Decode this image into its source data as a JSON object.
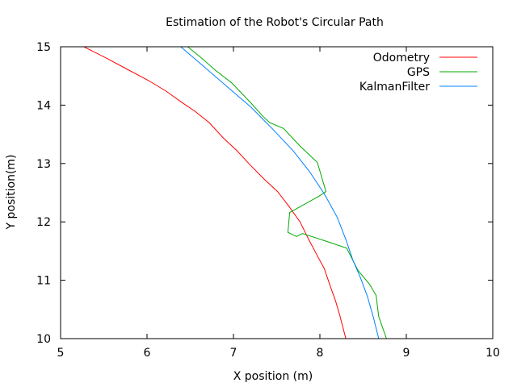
{
  "chart_data": {
    "type": "line",
    "title": "Estimation of the Robot's Circular Path",
    "xlabel": "X position (m)",
    "ylabel": "Y position(m)",
    "xlim": [
      5,
      10
    ],
    "ylim": [
      10,
      15
    ],
    "x_ticks": [
      "5",
      "6",
      "7",
      "8",
      "9",
      "10"
    ],
    "y_ticks": [
      "10",
      "11",
      "12",
      "13",
      "14",
      "15"
    ],
    "grid": false,
    "legend_position": "top-right",
    "series": [
      {
        "name": "Odometry",
        "color": "#ff0000",
        "points": [
          [
            5.27,
            15.0
          ],
          [
            5.55,
            14.79
          ],
          [
            5.79,
            14.6
          ],
          [
            6.02,
            14.42
          ],
          [
            6.22,
            14.24
          ],
          [
            6.4,
            14.05
          ],
          [
            6.55,
            13.9
          ],
          [
            6.72,
            13.7
          ],
          [
            6.88,
            13.44
          ],
          [
            7.04,
            13.22
          ],
          [
            7.19,
            12.98
          ],
          [
            7.35,
            12.74
          ],
          [
            7.51,
            12.52
          ],
          [
            7.64,
            12.27
          ],
          [
            7.77,
            12.0
          ],
          [
            7.87,
            11.7
          ],
          [
            7.97,
            11.42
          ],
          [
            8.05,
            11.2
          ],
          [
            8.12,
            10.9
          ],
          [
            8.18,
            10.65
          ],
          [
            8.23,
            10.4
          ],
          [
            8.3,
            10.0
          ]
        ]
      },
      {
        "name": "GPS",
        "color": "#00aa00",
        "points": [
          [
            6.47,
            15.0
          ],
          [
            6.62,
            14.82
          ],
          [
            6.79,
            14.6
          ],
          [
            6.98,
            14.38
          ],
          [
            7.2,
            14.04
          ],
          [
            7.34,
            13.81
          ],
          [
            7.42,
            13.7
          ],
          [
            7.58,
            13.6
          ],
          [
            7.77,
            13.3
          ],
          [
            7.97,
            13.02
          ],
          [
            8.07,
            12.52
          ],
          [
            7.99,
            12.44
          ],
          [
            7.65,
            12.16
          ],
          [
            7.63,
            11.82
          ],
          [
            7.73,
            11.75
          ],
          [
            7.8,
            11.8
          ],
          [
            8.07,
            11.67
          ],
          [
            8.31,
            11.55
          ],
          [
            8.44,
            11.17
          ],
          [
            8.57,
            10.94
          ],
          [
            8.65,
            10.74
          ],
          [
            8.68,
            10.38
          ],
          [
            8.77,
            10.0
          ]
        ]
      },
      {
        "name": "KalmanFilter",
        "color": "#0080ff",
        "points": [
          [
            6.39,
            15.0
          ],
          [
            6.65,
            14.67
          ],
          [
            6.94,
            14.3
          ],
          [
            7.2,
            13.97
          ],
          [
            7.46,
            13.58
          ],
          [
            7.69,
            13.22
          ],
          [
            7.88,
            12.86
          ],
          [
            8.05,
            12.48
          ],
          [
            8.2,
            12.08
          ],
          [
            8.3,
            11.7
          ],
          [
            8.38,
            11.35
          ],
          [
            8.47,
            11.04
          ],
          [
            8.55,
            10.72
          ],
          [
            8.62,
            10.36
          ],
          [
            8.68,
            10.0
          ]
        ]
      }
    ]
  }
}
